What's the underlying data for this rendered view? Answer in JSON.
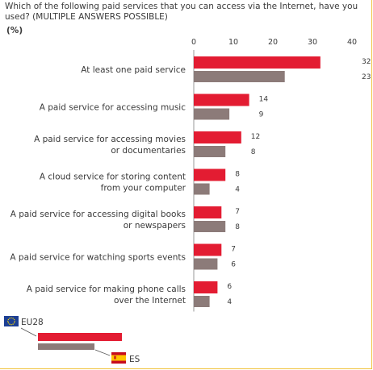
{
  "question": "Which of the following paid services that you can access via the Internet, have you used? (MULTIPLE ANSWERS POSSIBLE)",
  "unit": "(%)",
  "colors": {
    "eu28": "#e31c32",
    "es": "#8c7b79"
  },
  "chart_data": {
    "type": "bar",
    "orientation": "horizontal",
    "xlim": [
      0,
      40
    ],
    "xticks": [
      "0",
      "10",
      "20",
      "30",
      "40"
    ],
    "categories": [
      [
        "At least one paid service"
      ],
      [
        "A paid service for accessing music"
      ],
      [
        "A paid service for accessing movies",
        "or documentaries"
      ],
      [
        "A cloud service for storing content",
        "from your computer"
      ],
      [
        "A paid service for accessing digital books",
        "or newspapers"
      ],
      [
        "A paid service for watching sports events"
      ],
      [
        "A paid service for making phone calls",
        "over the Internet"
      ]
    ],
    "series": [
      {
        "name": "EU28",
        "color": "#e31c32",
        "values": [
          32,
          14,
          12,
          8,
          7,
          7,
          6
        ]
      },
      {
        "name": "ES",
        "color": "#8c7b79",
        "values": [
          23,
          9,
          8,
          4,
          8,
          6,
          4
        ]
      }
    ],
    "legend": "bottom-left"
  },
  "legend": {
    "eu28_label": "EU28",
    "es_label": "ES"
  }
}
